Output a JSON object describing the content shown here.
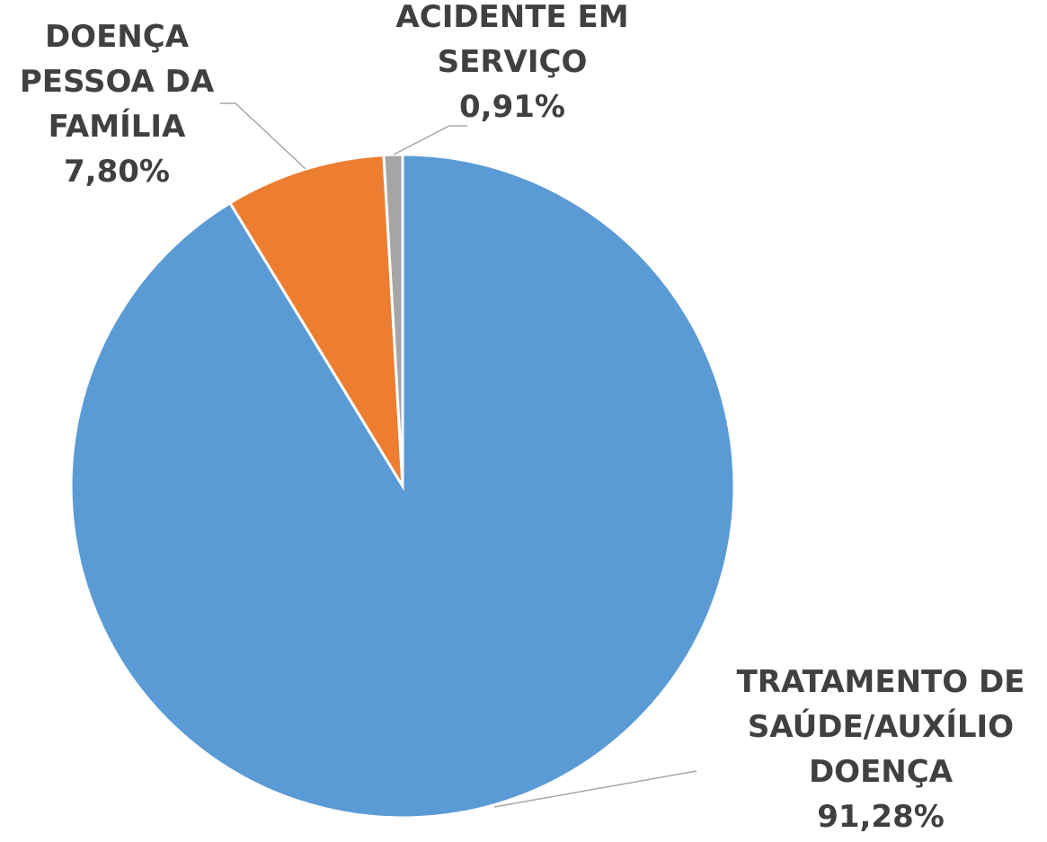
{
  "chart_data": {
    "type": "pie",
    "categories": [
      "TRATAMENTO DE SAÚDE/AUXÍLIO DOENÇA",
      "DOENÇA PESSOA DA FAMÍLIA",
      "ACIDENTE EM SERVIÇO"
    ],
    "values": [
      91.28,
      7.8,
      0.91
    ],
    "value_labels": [
      "91,28%",
      "7,80%",
      "0,91%"
    ],
    "colors": [
      "#5b9bd5",
      "#ed7d31",
      "#a5a5a5"
    ]
  }
}
